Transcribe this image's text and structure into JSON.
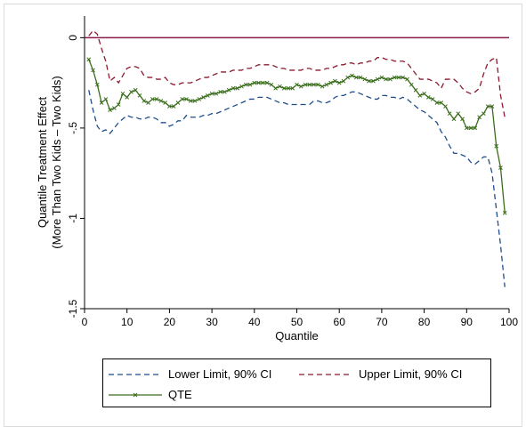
{
  "colors": {
    "lower": "#1f4e8c",
    "upper": "#8b1a2e",
    "qte": "#3a6e1c",
    "zero_line": "#8b1a4a",
    "frame_border": "#dcdcdc"
  },
  "chart_data": {
    "type": "line",
    "xlabel": "Quantile",
    "ylabel_lines": [
      "Quantile Treatment Effect",
      "(More Than Two Kids – Two Kids)"
    ],
    "xlim": [
      0,
      100
    ],
    "ylim": [
      -1.5,
      0.12
    ],
    "x_ticks": [
      0,
      10,
      20,
      30,
      40,
      50,
      60,
      70,
      80,
      90,
      100
    ],
    "y_ticks": [
      0,
      -0.5,
      -1,
      -1.5
    ],
    "y_tick_labels": [
      "0",
      "-.5",
      "-1",
      "-1.5"
    ],
    "reference_line_y": 0,
    "legend_position": "bottom",
    "x": [
      1,
      2,
      3,
      4,
      5,
      6,
      7,
      8,
      9,
      10,
      11,
      12,
      13,
      14,
      15,
      16,
      17,
      18,
      19,
      20,
      21,
      22,
      23,
      24,
      25,
      26,
      27,
      28,
      29,
      30,
      31,
      32,
      33,
      34,
      35,
      36,
      37,
      38,
      39,
      40,
      41,
      42,
      43,
      44,
      45,
      46,
      47,
      48,
      49,
      50,
      51,
      52,
      53,
      54,
      55,
      56,
      57,
      58,
      59,
      60,
      61,
      62,
      63,
      64,
      65,
      66,
      67,
      68,
      69,
      70,
      71,
      72,
      73,
      74,
      75,
      76,
      77,
      78,
      79,
      80,
      81,
      82,
      83,
      84,
      85,
      86,
      87,
      88,
      89,
      90,
      91,
      92,
      93,
      94,
      95,
      96,
      97,
      98,
      99
    ],
    "series": [
      {
        "name": "Lower Limit, 90% CI",
        "style": "dashed",
        "values": [
          -0.29,
          -0.4,
          -0.49,
          -0.52,
          -0.51,
          -0.53,
          -0.5,
          -0.47,
          -0.45,
          -0.43,
          -0.44,
          -0.44,
          -0.45,
          -0.45,
          -0.44,
          -0.44,
          -0.45,
          -0.47,
          -0.47,
          -0.49,
          -0.48,
          -0.46,
          -0.46,
          -0.43,
          -0.44,
          -0.44,
          -0.44,
          -0.43,
          -0.43,
          -0.42,
          -0.42,
          -0.41,
          -0.4,
          -0.39,
          -0.38,
          -0.37,
          -0.36,
          -0.35,
          -0.34,
          -0.34,
          -0.33,
          -0.33,
          -0.33,
          -0.34,
          -0.35,
          -0.36,
          -0.36,
          -0.37,
          -0.37,
          -0.37,
          -0.37,
          -0.37,
          -0.37,
          -0.35,
          -0.35,
          -0.36,
          -0.36,
          -0.35,
          -0.33,
          -0.32,
          -0.32,
          -0.31,
          -0.3,
          -0.3,
          -0.31,
          -0.32,
          -0.33,
          -0.34,
          -0.34,
          -0.32,
          -0.32,
          -0.33,
          -0.33,
          -0.34,
          -0.33,
          -0.34,
          -0.36,
          -0.38,
          -0.4,
          -0.41,
          -0.43,
          -0.45,
          -0.47,
          -0.52,
          -0.55,
          -0.6,
          -0.64,
          -0.64,
          -0.65,
          -0.66,
          -0.69,
          -0.7,
          -0.68,
          -0.66,
          -0.66,
          -0.75,
          -0.95,
          -1.15,
          -1.38
        ]
      },
      {
        "name": "Upper Limit, 90% CI",
        "style": "dashed",
        "values": [
          0.01,
          0.04,
          0.02,
          -0.06,
          -0.13,
          -0.24,
          -0.22,
          -0.25,
          -0.21,
          -0.17,
          -0.16,
          -0.16,
          -0.17,
          -0.21,
          -0.22,
          -0.22,
          -0.23,
          -0.23,
          -0.22,
          -0.25,
          -0.26,
          -0.26,
          -0.25,
          -0.25,
          -0.25,
          -0.24,
          -0.23,
          -0.22,
          -0.22,
          -0.21,
          -0.2,
          -0.19,
          -0.19,
          -0.19,
          -0.18,
          -0.18,
          -0.18,
          -0.17,
          -0.17,
          -0.16,
          -0.15,
          -0.15,
          -0.15,
          -0.15,
          -0.16,
          -0.17,
          -0.17,
          -0.18,
          -0.18,
          -0.18,
          -0.18,
          -0.17,
          -0.17,
          -0.18,
          -0.18,
          -0.18,
          -0.17,
          -0.17,
          -0.16,
          -0.15,
          -0.15,
          -0.14,
          -0.14,
          -0.15,
          -0.14,
          -0.14,
          -0.13,
          -0.13,
          -0.11,
          -0.11,
          -0.12,
          -0.12,
          -0.13,
          -0.13,
          -0.13,
          -0.14,
          -0.17,
          -0.2,
          -0.23,
          -0.23,
          -0.23,
          -0.24,
          -0.25,
          -0.28,
          -0.23,
          -0.23,
          -0.23,
          -0.25,
          -0.28,
          -0.3,
          -0.31,
          -0.3,
          -0.28,
          -0.2,
          -0.14,
          -0.12,
          -0.11,
          -0.32,
          -0.44
        ]
      },
      {
        "name": "QTE",
        "style": "solid-marker",
        "values": [
          -0.12,
          -0.18,
          -0.26,
          -0.36,
          -0.34,
          -0.4,
          -0.39,
          -0.37,
          -0.31,
          -0.33,
          -0.3,
          -0.29,
          -0.32,
          -0.35,
          -0.36,
          -0.34,
          -0.34,
          -0.35,
          -0.36,
          -0.38,
          -0.38,
          -0.36,
          -0.34,
          -0.34,
          -0.35,
          -0.35,
          -0.34,
          -0.33,
          -0.32,
          -0.31,
          -0.31,
          -0.3,
          -0.3,
          -0.29,
          -0.28,
          -0.28,
          -0.27,
          -0.26,
          -0.26,
          -0.25,
          -0.25,
          -0.25,
          -0.25,
          -0.26,
          -0.28,
          -0.27,
          -0.28,
          -0.28,
          -0.28,
          -0.26,
          -0.27,
          -0.26,
          -0.26,
          -0.26,
          -0.26,
          -0.27,
          -0.26,
          -0.25,
          -0.24,
          -0.25,
          -0.24,
          -0.22,
          -0.21,
          -0.22,
          -0.22,
          -0.23,
          -0.24,
          -0.24,
          -0.23,
          -0.22,
          -0.23,
          -0.23,
          -0.22,
          -0.22,
          -0.22,
          -0.23,
          -0.26,
          -0.29,
          -0.32,
          -0.31,
          -0.33,
          -0.34,
          -0.36,
          -0.36,
          -0.38,
          -0.42,
          -0.45,
          -0.42,
          -0.45,
          -0.5,
          -0.5,
          -0.5,
          -0.44,
          -0.42,
          -0.38,
          -0.38,
          -0.6,
          -0.72,
          -0.97
        ]
      }
    ]
  }
}
